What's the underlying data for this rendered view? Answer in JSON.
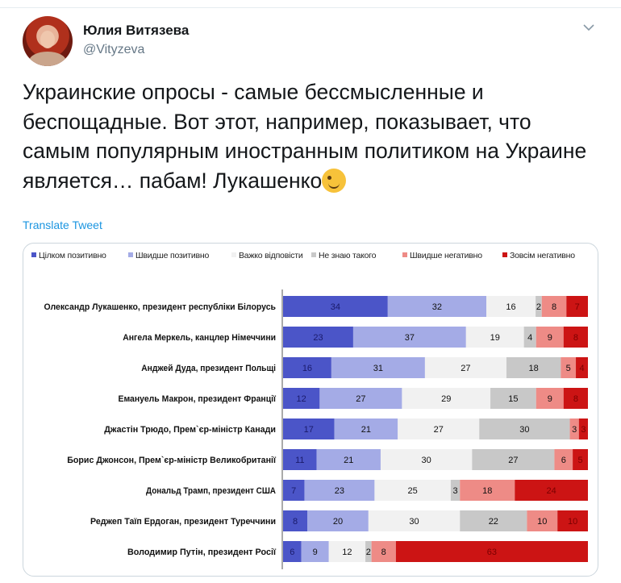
{
  "tweet": {
    "author_name": "Юлия Витязева",
    "author_handle": "@Vityzeva",
    "text": "Украинские опросы - самые бессмысленные и беспощадные. Вот этот, например, показывает, что самым популярным иностранным политиком на Украине является… пабам! Лукашенко",
    "translate_label": "Translate Tweet",
    "emoji_icon": "winking-face-emoji"
  },
  "colors": {
    "very_positive": "#4b55c8",
    "rather_positive": "#a4abe6",
    "hard_to_say": "#f1f1f1",
    "dont_know": "#c8c8c8",
    "rather_negative": "#ee8b86",
    "very_negative": "#cc1414"
  },
  "chart_data": {
    "type": "bar",
    "orientation": "horizontal",
    "stacked": true,
    "legend_position": "top",
    "categories": [
      "Олександр Лукашенко, президент республіки Білорусь",
      "Ангела Меркель, канцлер Німеччини",
      "Анджей Дуда, президент Польщі",
      "Емануель Макрон, президент Франції",
      "Джастін Трюдо, Прем`єр-міністр Канади",
      "Борис Джонсон, Прем`єр-міністр Великобританії",
      "Дональд Трамп, президент США",
      "Реджеп Таїп Ердоган, президент Туреччини",
      "Володимир Путін, президент Росії"
    ],
    "series": [
      {
        "name": "Цілком позитивно",
        "color_key": "very_positive",
        "values": [
          34,
          23,
          16,
          12,
          17,
          11,
          7,
          8,
          6
        ]
      },
      {
        "name": "Швидше позитивно",
        "color_key": "rather_positive",
        "values": [
          32,
          37,
          31,
          27,
          21,
          21,
          23,
          20,
          9
        ]
      },
      {
        "name": "Важко відповісти",
        "color_key": "hard_to_say",
        "values": [
          16,
          19,
          27,
          29,
          27,
          30,
          25,
          30,
          12
        ]
      },
      {
        "name": "Не знаю такого",
        "color_key": "dont_know",
        "values": [
          2,
          4,
          18,
          15,
          30,
          27,
          3,
          22,
          2
        ]
      },
      {
        "name": "Швидше негативно",
        "color_key": "rather_negative",
        "values": [
          8,
          9,
          5,
          9,
          3,
          6,
          18,
          10,
          8
        ]
      },
      {
        "name": "Зовсім негативно",
        "color_key": "very_negative",
        "values": [
          7,
          8,
          4,
          8,
          3,
          5,
          24,
          10,
          63
        ]
      }
    ]
  }
}
